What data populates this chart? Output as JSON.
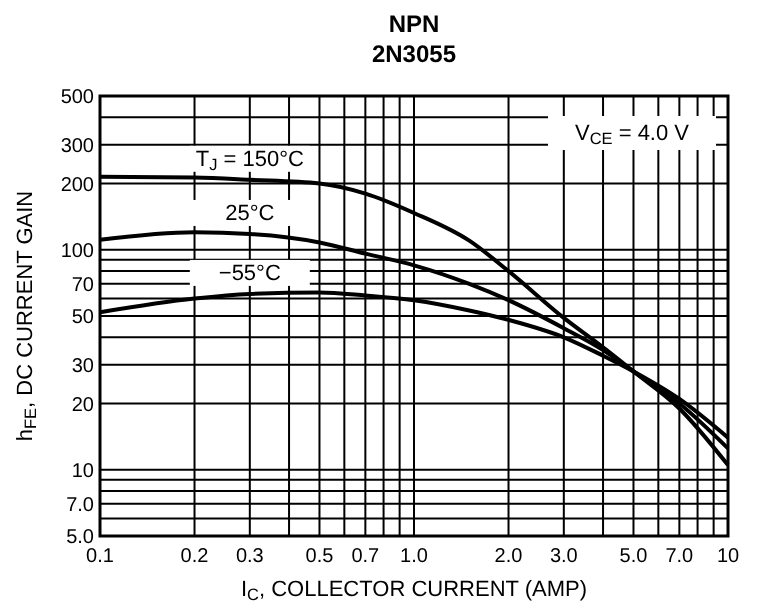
{
  "chart_data": {
    "type": "line",
    "title": "NPN",
    "subtitle": "2N3055",
    "xlabel": "I$_{C}$, COLLECTOR CURRENT (AMP)",
    "ylabel": "h$_{FE}$, DC CURRENT GAIN",
    "annotations": [
      "V$_{CE}$ = 4.0 V"
    ],
    "log": "xy",
    "grid": true,
    "marker": "none",
    "line_style": "solid",
    "x": [
      0.1,
      0.2,
      0.3,
      0.5,
      0.7,
      1.0,
      1.5,
      2.0,
      3.0,
      4.0,
      5.0,
      7.0,
      10
    ],
    "xlim": [
      0.1,
      10
    ],
    "ylim": [
      5,
      500
    ],
    "xticks": [
      0.1,
      0.2,
      0.3,
      {
        "value": 0.4,
        "label": null
      },
      0.5,
      {
        "value": 0.6,
        "label": null
      },
      0.7,
      {
        "value": 0.8,
        "label": null
      },
      {
        "value": 0.9,
        "label": null
      },
      {
        "value": 1,
        "label": "1.0"
      },
      {
        "value": 2,
        "label": "2.0"
      },
      {
        "value": 3,
        "label": "3.0"
      },
      {
        "value": 4,
        "label": null
      },
      {
        "value": 5,
        "label": "5.0"
      },
      {
        "value": 6,
        "label": null
      },
      {
        "value": 7,
        "label": "7.0"
      },
      {
        "value": 8,
        "label": null
      },
      {
        "value": 9,
        "label": null
      },
      10
    ],
    "yticks": [
      {
        "value": 5,
        "label": "5.0"
      },
      {
        "value": 6,
        "label": null
      },
      {
        "value": 7,
        "label": "7.0"
      },
      {
        "value": 8,
        "label": null
      },
      {
        "value": 9,
        "label": null
      },
      10,
      20,
      30,
      {
        "value": 40,
        "label": null
      },
      50,
      {
        "value": 60,
        "label": null
      },
      70,
      {
        "value": 80,
        "label": null
      },
      {
        "value": 90,
        "label": null
      },
      100,
      200,
      300,
      {
        "value": 400,
        "label": null
      },
      500
    ],
    "series": [
      {
        "name": "T$_{J}$ = 150°C",
        "color": "#000000",
        "values": [
          215,
          213,
          208,
          200,
          180,
          147,
          110,
          80,
          49,
          36,
          28,
          19,
          10.5
        ]
      },
      {
        "name": "25°C",
        "color": "#000000",
        "values": [
          111,
          120,
          118,
          108,
          96,
          85,
          70,
          59,
          44,
          35,
          28,
          20,
          12.5
        ]
      },
      {
        "name": "−55°C",
        "color": "#000000",
        "values": [
          52,
          60,
          63,
          64,
          62,
          59,
          53,
          48,
          40,
          33,
          28,
          21,
          14
        ]
      }
    ]
  }
}
